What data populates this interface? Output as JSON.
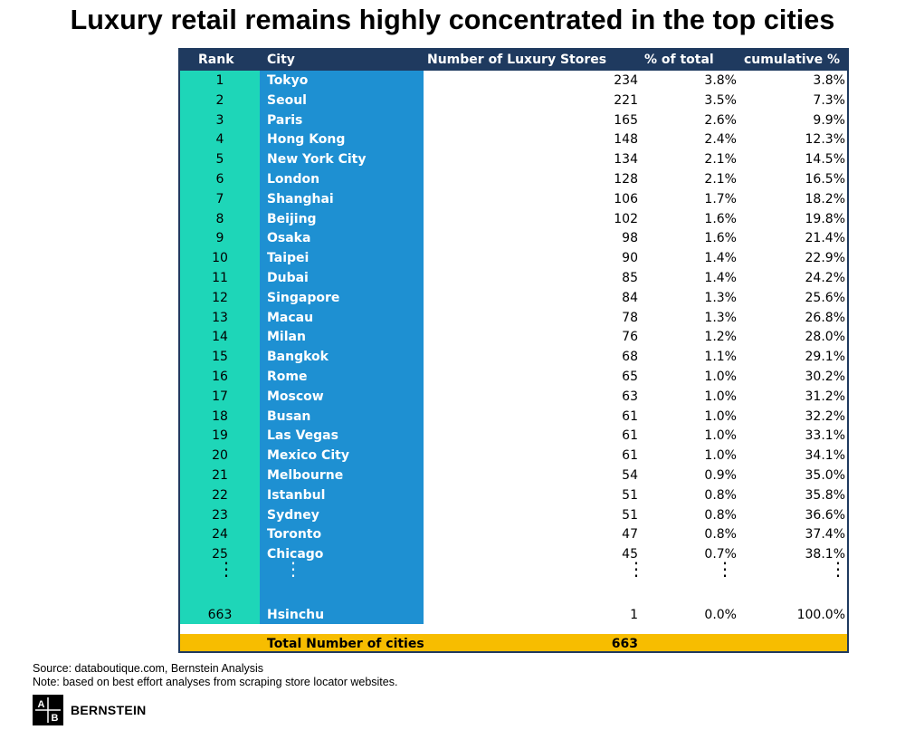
{
  "title": "Luxury retail remains highly concentrated in the top cities",
  "chart_data": {
    "type": "table",
    "columns": [
      "Rank",
      "City",
      "Number of Luxury Stores",
      "% of total",
      "cumulative %"
    ],
    "rows": [
      [
        "1",
        "Tokyo",
        "234",
        "3.8%",
        "3.8%"
      ],
      [
        "2",
        "Seoul",
        "221",
        "3.5%",
        "7.3%"
      ],
      [
        "3",
        "Paris",
        "165",
        "2.6%",
        "9.9%"
      ],
      [
        "4",
        "Hong Kong",
        "148",
        "2.4%",
        "12.3%"
      ],
      [
        "5",
        "New York City",
        "134",
        "2.1%",
        "14.5%"
      ],
      [
        "6",
        "London",
        "128",
        "2.1%",
        "16.5%"
      ],
      [
        "7",
        "Shanghai",
        "106",
        "1.7%",
        "18.2%"
      ],
      [
        "8",
        "Beijing",
        "102",
        "1.6%",
        "19.8%"
      ],
      [
        "9",
        "Osaka",
        "98",
        "1.6%",
        "21.4%"
      ],
      [
        "10",
        "Taipei",
        "90",
        "1.4%",
        "22.9%"
      ],
      [
        "11",
        "Dubai",
        "85",
        "1.4%",
        "24.2%"
      ],
      [
        "12",
        "Singapore",
        "84",
        "1.3%",
        "25.6%"
      ],
      [
        "13",
        "Macau",
        "78",
        "1.3%",
        "26.8%"
      ],
      [
        "14",
        "Milan",
        "76",
        "1.2%",
        "28.0%"
      ],
      [
        "15",
        "Bangkok",
        "68",
        "1.1%",
        "29.1%"
      ],
      [
        "16",
        "Rome",
        "65",
        "1.0%",
        "30.2%"
      ],
      [
        "17",
        "Moscow",
        "63",
        "1.0%",
        "31.2%"
      ],
      [
        "18",
        "Busan",
        "61",
        "1.0%",
        "32.2%"
      ],
      [
        "19",
        "Las Vegas",
        "61",
        "1.0%",
        "33.1%"
      ],
      [
        "20",
        "Mexico City",
        "61",
        "1.0%",
        "34.1%"
      ],
      [
        "21",
        "Melbourne",
        "54",
        "0.9%",
        "35.0%"
      ],
      [
        "22",
        "Istanbul",
        "51",
        "0.8%",
        "35.8%"
      ],
      [
        "23",
        "Sydney",
        "51",
        "0.8%",
        "36.6%"
      ],
      [
        "24",
        "Toronto",
        "47",
        "0.8%",
        "37.4%"
      ],
      [
        "25",
        "Chicago",
        "45",
        "0.7%",
        "38.1%"
      ]
    ],
    "last_row": [
      "663",
      "Hsinchu",
      "1",
      "0.0%",
      "100.0%"
    ],
    "total_label": "Total Number of cities",
    "total_value": "663"
  },
  "source_line": "Source: databoutique.com, Bernstein Analysis",
  "note_line": "Note: based on best effort analyses from scraping store locator websites.",
  "brand": "BERNSTEIN",
  "logo_letters": "AB",
  "colors": {
    "header": "#1f3a5f",
    "rank_band": "#1ed6b8",
    "city_band": "#1e90d2",
    "total_bar": "#f7bd00"
  }
}
